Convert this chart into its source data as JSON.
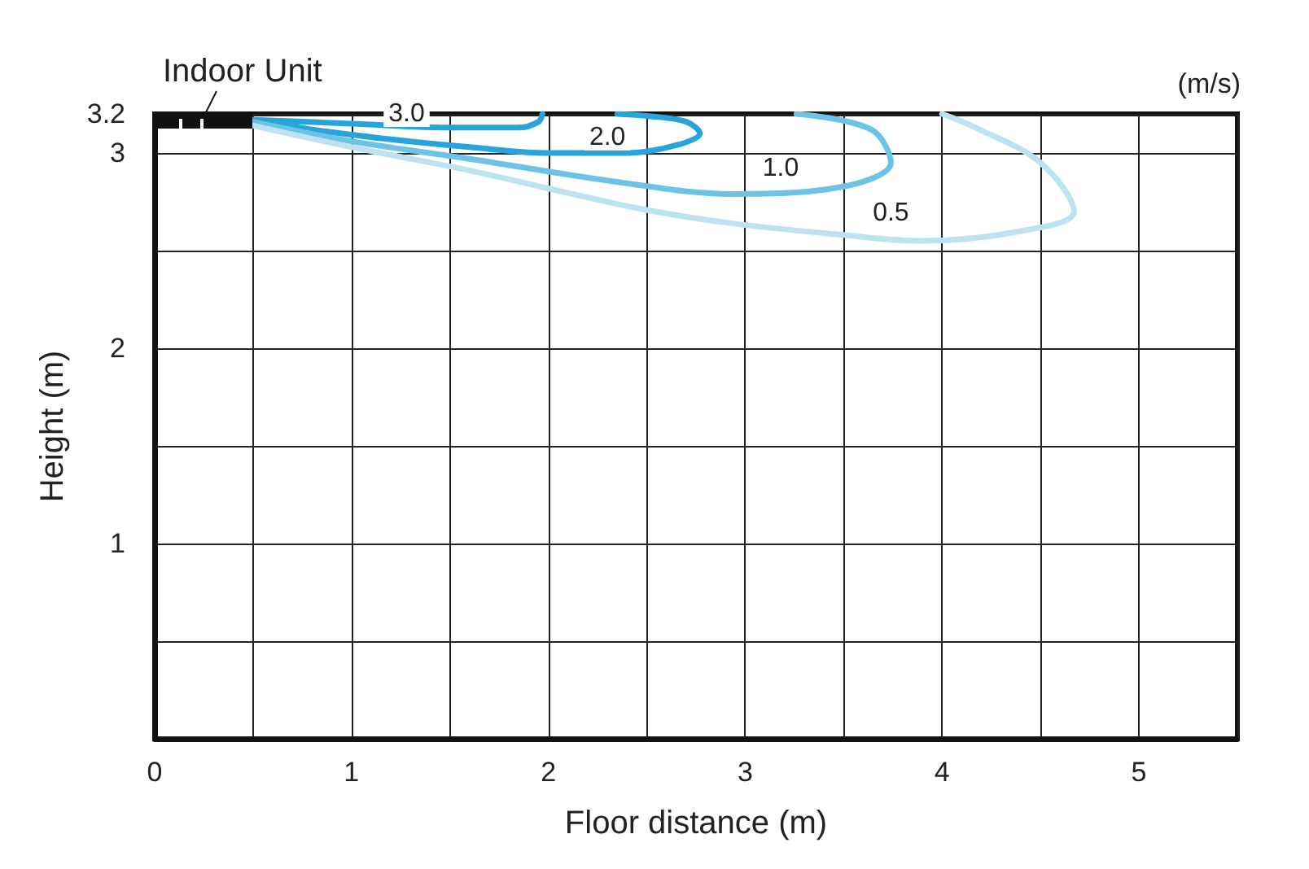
{
  "chart_data": {
    "type": "line",
    "xlabel": "Floor distance (m)",
    "ylabel": "Height (m)",
    "xlim": [
      0,
      5.5
    ],
    "ylim": [
      0,
      3.2
    ],
    "xticks": [
      0,
      {
        "value": 0.5,
        "label": null
      },
      1,
      {
        "value": 1.5,
        "label": null
      },
      2,
      {
        "value": 2.5,
        "label": null
      },
      3,
      {
        "value": 3.5,
        "label": null
      },
      4,
      {
        "value": 4.5,
        "label": null
      },
      5,
      {
        "value": 5.5,
        "label": null
      }
    ],
    "yticks": [
      {
        "value": 0,
        "label": null
      },
      {
        "value": 0.5,
        "label": null
      },
      1,
      {
        "value": 1.5,
        "label": null
      },
      2,
      {
        "value": 2.5,
        "label": null
      },
      3,
      3.2
    ],
    "grid": true,
    "marker": "none",
    "line_style": "solid",
    "series": [
      {
        "color": "#27a4dc",
        "x": [
          1.97,
          1.95,
          1.85,
          1.5,
          1.0,
          0.5,
          0.8,
          1.2,
          1.6,
          2.0,
          2.4,
          2.65,
          2.77,
          2.7,
          2.5,
          2.35
        ],
        "values": [
          3.2,
          3.16,
          3.13,
          3.13,
          3.15,
          3.17,
          3.12,
          3.07,
          3.03,
          3.0,
          3.0,
          3.04,
          3.1,
          3.16,
          3.19,
          3.2
        ]
      },
      {
        "color": "#6cc3e6",
        "x": [
          0.5,
          1.0,
          1.6,
          2.36,
          2.93,
          3.51,
          3.74,
          3.64,
          3.26
        ],
        "values": [
          3.16,
          3.06,
          2.97,
          2.85,
          2.79,
          2.83,
          2.95,
          3.12,
          3.2
        ]
      },
      {
        "color": "#bde3f0",
        "x": [
          0.5,
          1.0,
          1.6,
          2.44,
          2.93,
          3.5,
          3.9,
          4.4,
          4.67,
          4.5,
          4.17,
          4.0
        ],
        "values": [
          3.14,
          3.03,
          2.91,
          2.72,
          2.64,
          2.58,
          2.55,
          2.6,
          2.7,
          2.95,
          3.13,
          3.2
        ]
      }
    ],
    "annotations": [
      "Indoor Unit",
      "(m/s)",
      {
        "text": "3.0",
        "x": 1.28,
        "y": 3.2
      },
      {
        "text": "2.0",
        "x": 2.3,
        "y": 3.08
      },
      {
        "text": "1.0",
        "x": 3.18,
        "y": 2.92
      },
      {
        "text": "0.5",
        "x": 3.74,
        "y": 2.69
      }
    ]
  }
}
